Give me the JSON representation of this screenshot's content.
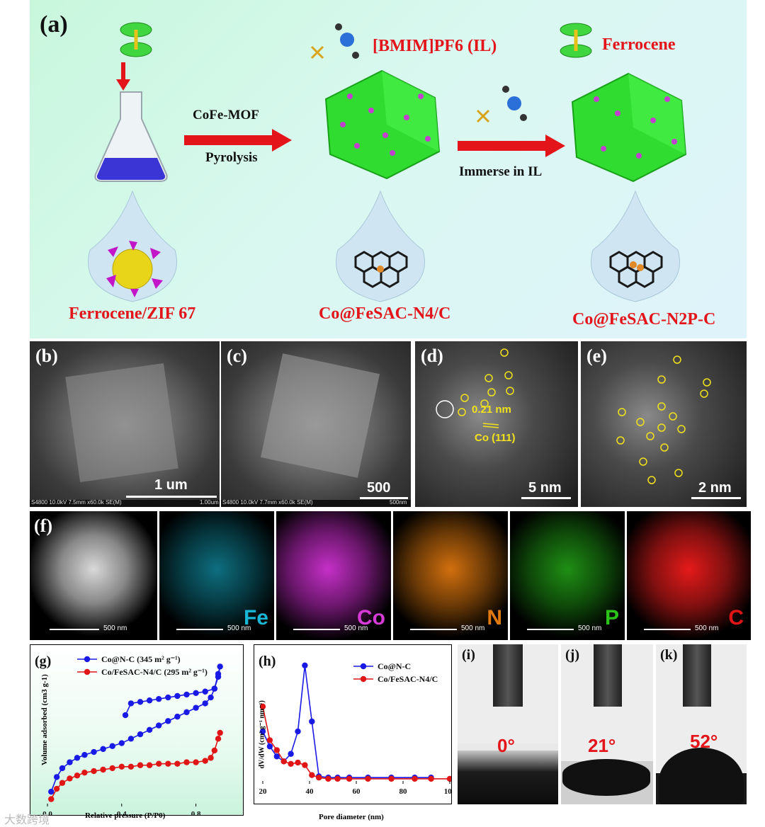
{
  "panel_a": {
    "label": "(a)",
    "step1_top": "CoFe-MOF",
    "step1_bottom": "Pyrolysis",
    "il_label": "[BMIM]PF6 (IL)",
    "ferrocene_label": "Ferrocene",
    "step2": "Immerse in IL",
    "name_left": "Ferrocene/ZIF 67",
    "name_mid": "Co@FeSAC-N4/C",
    "name_right": "Co@FeSAC-N2P-C"
  },
  "panel_b": {
    "label": "(b)",
    "scale": "1 um",
    "caption": "S4800 10.0kV 7.5mm x60.0k SE(M)",
    "caption_right": "1.00um"
  },
  "panel_c": {
    "label": "(c)",
    "scale": "500 nm",
    "caption": "S4800 10.0kV 7.7mm x60.0k SE(M)",
    "caption_right": "500nm"
  },
  "panel_d": {
    "label": "(d)",
    "scale": "5 nm",
    "spacing": "0.21 nm",
    "plane": "Co (111)"
  },
  "panel_e": {
    "label": "(e)",
    "scale": "2 nm"
  },
  "panel_f": {
    "label": "(f)",
    "maps": [
      {
        "element": "",
        "color": "#ffffff",
        "scale": "500 nm"
      },
      {
        "element": "Fe",
        "color": "#19b6d6",
        "scale": "500 nm"
      },
      {
        "element": "Co",
        "color": "#d63bd8",
        "scale": "500 nm"
      },
      {
        "element": "N",
        "color": "#e07a10",
        "scale": "500 nm"
      },
      {
        "element": "P",
        "color": "#2cc41a",
        "scale": "500 nm"
      },
      {
        "element": "C",
        "color": "#e01515",
        "scale": "500 nm"
      }
    ]
  },
  "panel_g": {
    "label": "(g)",
    "xlabel": "Relative pressure (P/P0)",
    "ylabel": "Volume adsorbed (cm3 g-1)",
    "legend": [
      "Co@N-C (345 m² g⁻¹)",
      "Co/FeSAC-N4/C (295 m² g⁻¹)"
    ],
    "xticks": [
      "0.0",
      "0.4",
      "0.8"
    ]
  },
  "panel_h": {
    "label": "(h)",
    "xlabel": "Pore diameter (nm)",
    "ylabel": "dV/dW (cm³ g⁻¹ nm⁻¹)",
    "legend": [
      "Co@N-C",
      "Co/FeSAC-N4/C"
    ],
    "xticks": [
      "20",
      "40",
      "60",
      "80",
      "100"
    ]
  },
  "contact": [
    {
      "label": "(i)",
      "angle": "0°"
    },
    {
      "label": "(j)",
      "angle": "21°"
    },
    {
      "label": "(k)",
      "angle": "52°"
    }
  ],
  "watermark": "大数跨境",
  "chart_data": [
    {
      "type": "line",
      "title": "",
      "xlabel": "Relative pressure (P/P0)",
      "ylabel": "Volume adsorbed (cm3 g-1)",
      "xlim": [
        0,
        1
      ],
      "series": [
        {
          "name": "Co@N-C (345 m² g⁻¹)",
          "color": "#1a1ae6",
          "x": [
            0.02,
            0.05,
            0.08,
            0.12,
            0.16,
            0.2,
            0.25,
            0.3,
            0.35,
            0.4,
            0.45,
            0.5,
            0.55,
            0.6,
            0.65,
            0.7,
            0.75,
            0.8,
            0.85,
            0.88,
            0.9,
            0.92,
            0.93,
            0.92,
            0.9,
            0.85,
            0.8,
            0.75,
            0.7,
            0.65,
            0.6,
            0.55,
            0.5,
            0.45,
            0.42
          ],
          "y": [
            0.1,
            0.2,
            0.26,
            0.3,
            0.33,
            0.35,
            0.37,
            0.39,
            0.41,
            0.43,
            0.46,
            0.49,
            0.52,
            0.55,
            0.58,
            0.61,
            0.64,
            0.67,
            0.7,
            0.74,
            0.8,
            0.88,
            0.95,
            0.9,
            0.8,
            0.78,
            0.77,
            0.76,
            0.75,
            0.74,
            0.73,
            0.72,
            0.71,
            0.7,
            0.62
          ]
        },
        {
          "name": "Co/FeSAC-N4/C (295 m² g⁻¹)",
          "color": "#e01515",
          "x": [
            0.02,
            0.05,
            0.08,
            0.12,
            0.16,
            0.2,
            0.25,
            0.3,
            0.35,
            0.4,
            0.45,
            0.5,
            0.55,
            0.6,
            0.65,
            0.7,
            0.75,
            0.8,
            0.85,
            0.88,
            0.9,
            0.92,
            0.93
          ],
          "y": [
            0.05,
            0.12,
            0.16,
            0.19,
            0.21,
            0.23,
            0.24,
            0.25,
            0.26,
            0.27,
            0.27,
            0.28,
            0.28,
            0.29,
            0.29,
            0.29,
            0.3,
            0.3,
            0.31,
            0.33,
            0.38,
            0.46,
            0.5
          ]
        }
      ]
    },
    {
      "type": "line",
      "title": "",
      "xlabel": "Pore diameter (nm)",
      "ylabel": "dV/dW (cm³ g⁻¹ nm⁻¹)",
      "xlim": [
        20,
        100
      ],
      "series": [
        {
          "name": "Co@N-C",
          "color": "#1a1ae6",
          "x": [
            20,
            23,
            26,
            29,
            32,
            35,
            38,
            41,
            44,
            48,
            52,
            57,
            65,
            75,
            85,
            92
          ],
          "y": [
            0.42,
            0.3,
            0.22,
            0.18,
            0.24,
            0.42,
            0.95,
            0.5,
            0.06,
            0.05,
            0.05,
            0.05,
            0.05,
            0.05,
            0.05,
            0.05
          ]
        },
        {
          "name": "Co/FeSAC-N4/C",
          "color": "#e01515",
          "x": [
            20,
            23,
            26,
            29,
            32,
            35,
            38,
            41,
            44,
            48,
            52,
            57,
            65,
            75,
            85,
            92,
            100
          ],
          "y": [
            0.62,
            0.35,
            0.27,
            0.18,
            0.16,
            0.17,
            0.15,
            0.07,
            0.05,
            0.04,
            0.04,
            0.04,
            0.04,
            0.04,
            0.04,
            0.04,
            0.04
          ]
        }
      ]
    }
  ]
}
